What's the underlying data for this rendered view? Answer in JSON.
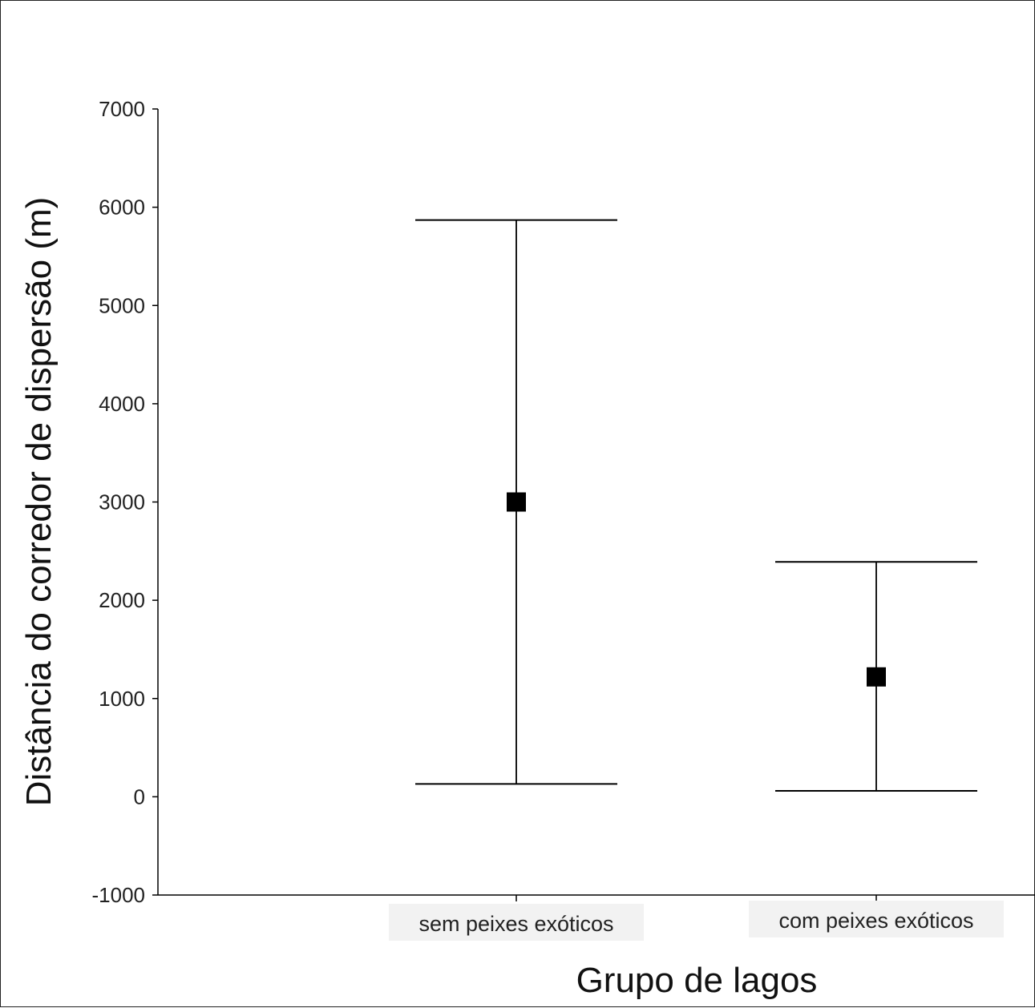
{
  "chart_data": {
    "type": "errorbar",
    "title": "",
    "xlabel": "Grupo de lagos",
    "ylabel": "Distância do corredor de dispersão (m)",
    "ylim": [
      -1000,
      7000
    ],
    "yticks": [
      -1000,
      0,
      1000,
      2000,
      3000,
      4000,
      5000,
      6000,
      7000
    ],
    "categories": [
      "sem peixes exóticos",
      "com peixes exóticos"
    ],
    "series": [
      {
        "values": [
          3000,
          1220
        ],
        "lower": [
          130,
          60
        ],
        "upper": [
          5870,
          2390
        ]
      }
    ],
    "grid": false,
    "legend": "none",
    "colors": {
      "marker": "#000000",
      "line": "#000000",
      "label_bg": "#f2f2f2"
    }
  }
}
